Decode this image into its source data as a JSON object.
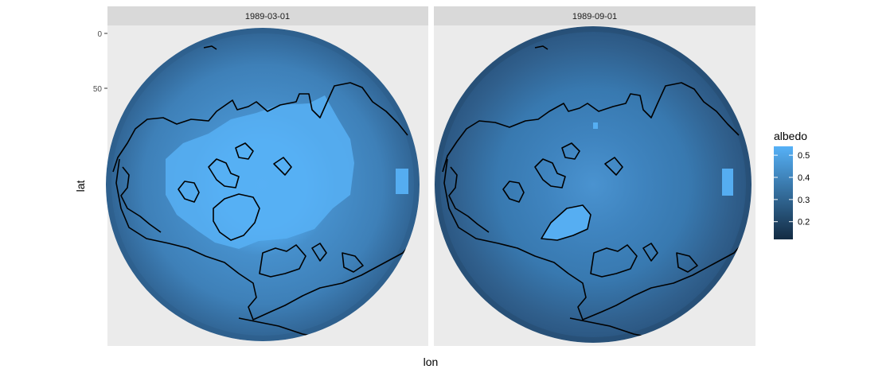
{
  "chart_data": {
    "type": "map",
    "projection": "north polar orthographic",
    "fill_variable": "albedo",
    "xlabel": "lon",
    "ylabel": "lat",
    "lat_ticks": [
      0,
      50
    ],
    "panels": [
      {
        "label": "1989-03-01",
        "polar_albedo": 0.52,
        "midlat_albedo": 0.36,
        "ocean_albedo": 0.32
      },
      {
        "label": "1989-09-01",
        "polar_albedo": 0.34,
        "midlat_albedo": 0.31,
        "ocean_albedo": 0.3
      }
    ],
    "legend": {
      "title": "albedo",
      "ticks": [
        0.5,
        0.4,
        0.3,
        0.2
      ],
      "range": [
        0.12,
        0.54
      ],
      "colors": {
        "low": "#132b43",
        "high": "#56b1f7"
      }
    }
  }
}
